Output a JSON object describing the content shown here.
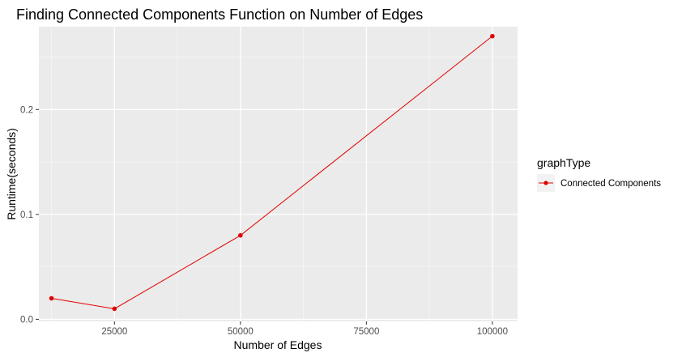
{
  "chart_data": {
    "type": "line",
    "title": "Finding Connected Components Function on Number of Edges",
    "xlabel": "Number of Edges",
    "ylabel": "Runtime(seconds)",
    "xlim": [
      10000,
      105000
    ],
    "ylim": [
      -0.002,
      0.279
    ],
    "x_ticks": [
      25000,
      50000,
      75000,
      100000
    ],
    "x_tick_labels": [
      "25000",
      "50000",
      "75000",
      "100000"
    ],
    "y_ticks": [
      0.0,
      0.1,
      0.2
    ],
    "y_tick_labels": [
      "0.0",
      "0.1",
      "0.2"
    ],
    "grid": true,
    "legend": {
      "title": "graphType",
      "placement": "right"
    },
    "series": [
      {
        "name": "Connected Components",
        "color": "#e00000",
        "x": [
          12500,
          25000,
          50000,
          100000
        ],
        "y": [
          0.02,
          0.01,
          0.08,
          0.27
        ]
      }
    ]
  },
  "colors": {
    "panel_background": "#ebebeb",
    "grid_major": "#ffffff",
    "grid_minor": "#f5f5f5",
    "tick_label": "#4d4d4d"
  }
}
